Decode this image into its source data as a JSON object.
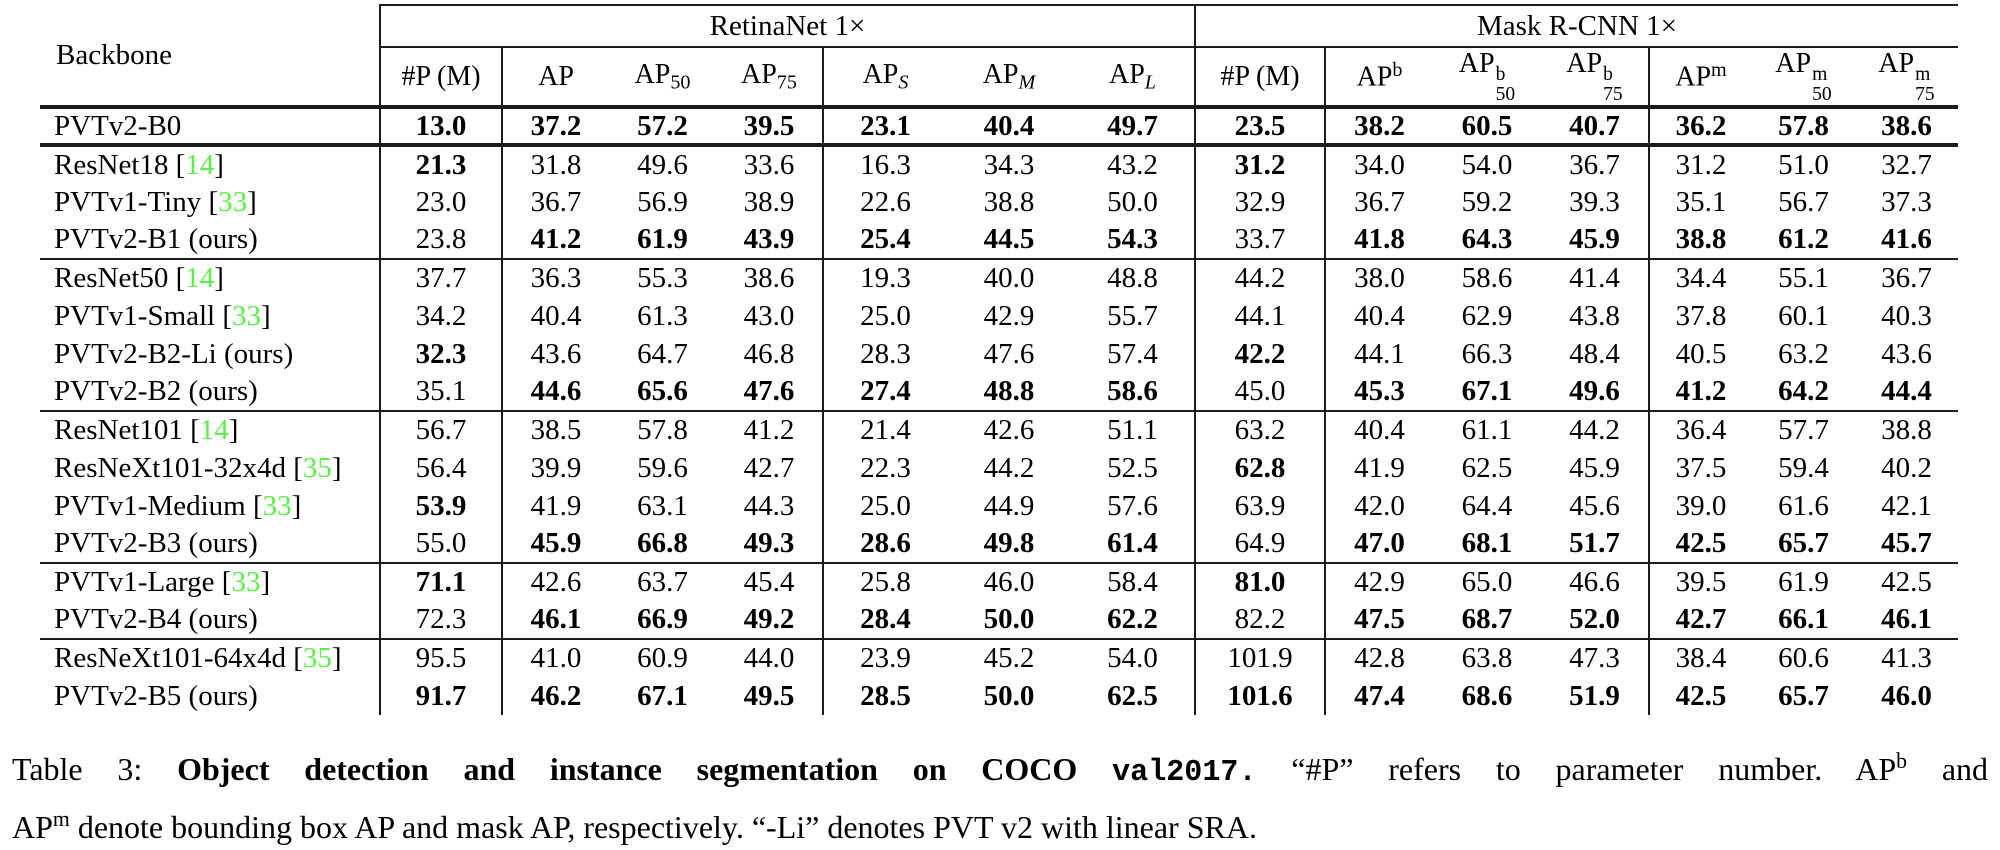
{
  "colors": {
    "cite_green": "#5cef4c",
    "rule": "#1c1c1c",
    "text": "#000000",
    "background": "#ffffff"
  },
  "table": {
    "backbone_label": "Backbone",
    "retina_label": "RetinaNet 1×",
    "mask_label": "Mask R-CNN 1×",
    "retina_cols": [
      {
        "base": "#P (M)"
      },
      {
        "base": "AP"
      },
      {
        "base": "AP",
        "sub": "50"
      },
      {
        "base": "AP",
        "sub": "75"
      },
      {
        "base": "AP",
        "sub": "S",
        "italic": true
      },
      {
        "base": "AP",
        "sub": "M",
        "italic": true
      },
      {
        "base": "AP",
        "sub": "L",
        "italic": true
      }
    ],
    "mask_cols": [
      {
        "base": "#P (M)"
      },
      {
        "base": "AP",
        "sup": "b"
      },
      {
        "base": "AP",
        "sup": "b",
        "sub": "50"
      },
      {
        "base": "AP",
        "sup": "b",
        "sub": "75"
      },
      {
        "base": "AP",
        "sup": "m"
      },
      {
        "base": "AP",
        "sup": "m",
        "sub": "50"
      },
      {
        "base": "AP",
        "sup": "m",
        "sub": "75"
      }
    ],
    "rows": [
      {
        "name": "PVTv2-B0",
        "dbl": true,
        "vals": [
          "13.0",
          "37.2",
          "57.2",
          "39.5",
          "23.1",
          "40.4",
          "49.7",
          "23.5",
          "38.2",
          "60.5",
          "40.7",
          "36.2",
          "57.8",
          "38.6"
        ],
        "bold": [
          0,
          1,
          2,
          3,
          4,
          5,
          6,
          7,
          8,
          9,
          10,
          11,
          12,
          13
        ]
      },
      {
        "name": "ResNet18",
        "cite": "14",
        "sep": true,
        "vals": [
          "21.3",
          "31.8",
          "49.6",
          "33.6",
          "16.3",
          "34.3",
          "43.2",
          "31.2",
          "34.0",
          "54.0",
          "36.7",
          "31.2",
          "51.0",
          "32.7"
        ],
        "bold": [
          0,
          7
        ]
      },
      {
        "name": "PVTv1-Tiny",
        "cite": "33",
        "vals": [
          "23.0",
          "36.7",
          "56.9",
          "38.9",
          "22.6",
          "38.8",
          "50.0",
          "32.9",
          "36.7",
          "59.2",
          "39.3",
          "35.1",
          "56.7",
          "37.3"
        ],
        "bold": []
      },
      {
        "name": "PVTv2-B1 (ours)",
        "vals": [
          "23.8",
          "41.2",
          "61.9",
          "43.9",
          "25.4",
          "44.5",
          "54.3",
          "33.7",
          "41.8",
          "64.3",
          "45.9",
          "38.8",
          "61.2",
          "41.6"
        ],
        "bold": [
          1,
          2,
          3,
          4,
          5,
          6,
          8,
          9,
          10,
          11,
          12,
          13
        ]
      },
      {
        "name": "ResNet50",
        "cite": "14",
        "sep": true,
        "vals": [
          "37.7",
          "36.3",
          "55.3",
          "38.6",
          "19.3",
          "40.0",
          "48.8",
          "44.2",
          "38.0",
          "58.6",
          "41.4",
          "34.4",
          "55.1",
          "36.7"
        ],
        "bold": []
      },
      {
        "name": "PVTv1-Small",
        "cite": "33",
        "vals": [
          "34.2",
          "40.4",
          "61.3",
          "43.0",
          "25.0",
          "42.9",
          "55.7",
          "44.1",
          "40.4",
          "62.9",
          "43.8",
          "37.8",
          "60.1",
          "40.3"
        ],
        "bold": []
      },
      {
        "name": "PVTv2-B2-Li (ours)",
        "vals": [
          "32.3",
          "43.6",
          "64.7",
          "46.8",
          "28.3",
          "47.6",
          "57.4",
          "42.2",
          "44.1",
          "66.3",
          "48.4",
          "40.5",
          "63.2",
          "43.6"
        ],
        "bold": [
          0,
          7
        ]
      },
      {
        "name": "PVTv2-B2 (ours)",
        "vals": [
          "35.1",
          "44.6",
          "65.6",
          "47.6",
          "27.4",
          "48.8",
          "58.6",
          "45.0",
          "45.3",
          "67.1",
          "49.6",
          "41.2",
          "64.2",
          "44.4"
        ],
        "bold": [
          1,
          2,
          3,
          4,
          5,
          6,
          8,
          9,
          10,
          11,
          12,
          13
        ]
      },
      {
        "name": "ResNet101",
        "cite": "14",
        "sep": true,
        "vals": [
          "56.7",
          "38.5",
          "57.8",
          "41.2",
          "21.4",
          "42.6",
          "51.1",
          "63.2",
          "40.4",
          "61.1",
          "44.2",
          "36.4",
          "57.7",
          "38.8"
        ],
        "bold": []
      },
      {
        "name": "ResNeXt101-32x4d",
        "cite": "35",
        "vals": [
          "56.4",
          "39.9",
          "59.6",
          "42.7",
          "22.3",
          "44.2",
          "52.5",
          "62.8",
          "41.9",
          "62.5",
          "45.9",
          "37.5",
          "59.4",
          "40.2"
        ],
        "bold": [
          7
        ]
      },
      {
        "name": "PVTv1-Medium",
        "cite": "33",
        "vals": [
          "53.9",
          "41.9",
          "63.1",
          "44.3",
          "25.0",
          "44.9",
          "57.6",
          "63.9",
          "42.0",
          "64.4",
          "45.6",
          "39.0",
          "61.6",
          "42.1"
        ],
        "bold": [
          0
        ]
      },
      {
        "name": "PVTv2-B3 (ours)",
        "vals": [
          "55.0",
          "45.9",
          "66.8",
          "49.3",
          "28.6",
          "49.8",
          "61.4",
          "64.9",
          "47.0",
          "68.1",
          "51.7",
          "42.5",
          "65.7",
          "45.7"
        ],
        "bold": [
          1,
          2,
          3,
          4,
          5,
          6,
          8,
          9,
          10,
          11,
          12,
          13
        ]
      },
      {
        "name": "PVTv1-Large",
        "cite": "33",
        "sep": true,
        "vals": [
          "71.1",
          "42.6",
          "63.7",
          "45.4",
          "25.8",
          "46.0",
          "58.4",
          "81.0",
          "42.9",
          "65.0",
          "46.6",
          "39.5",
          "61.9",
          "42.5"
        ],
        "bold": [
          0,
          7
        ]
      },
      {
        "name": "PVTv2-B4 (ours)",
        "vals": [
          "72.3",
          "46.1",
          "66.9",
          "49.2",
          "28.4",
          "50.0",
          "62.2",
          "82.2",
          "47.5",
          "68.7",
          "52.0",
          "42.7",
          "66.1",
          "46.1"
        ],
        "bold": [
          1,
          2,
          3,
          4,
          5,
          6,
          8,
          9,
          10,
          11,
          12,
          13
        ]
      },
      {
        "name": "ResNeXt101-64x4d",
        "cite": "35",
        "sep": true,
        "vals": [
          "95.5",
          "41.0",
          "60.9",
          "44.0",
          "23.9",
          "45.2",
          "54.0",
          "101.9",
          "42.8",
          "63.8",
          "47.3",
          "38.4",
          "60.6",
          "41.3"
        ],
        "bold": []
      },
      {
        "name": "PVTv2-B5 (ours)",
        "vals": [
          "91.7",
          "46.2",
          "67.1",
          "49.5",
          "28.5",
          "50.0",
          "62.5",
          "101.6",
          "47.4",
          "68.6",
          "51.9",
          "42.5",
          "65.7",
          "46.0"
        ],
        "bold": [
          0,
          1,
          2,
          3,
          4,
          5,
          6,
          7,
          8,
          9,
          10,
          11,
          12,
          13
        ]
      }
    ]
  },
  "caption": {
    "line1": [
      {
        "t": "Table 3: "
      },
      {
        "t": "Object detection and instance segmentation on COCO ",
        "b": true
      },
      {
        "t": "val2017.",
        "b": true,
        "mono": true
      },
      {
        "t": " “#P” refers to parameter number. AP"
      },
      {
        "t": "b",
        "sup": true
      },
      {
        "t": " and"
      }
    ],
    "line2": [
      {
        "t": "AP"
      },
      {
        "t": "m",
        "sup": true
      },
      {
        "t": " denote bounding box AP and mask AP, respectively. “-Li” denotes PVT v2 with linear SRA."
      }
    ]
  }
}
